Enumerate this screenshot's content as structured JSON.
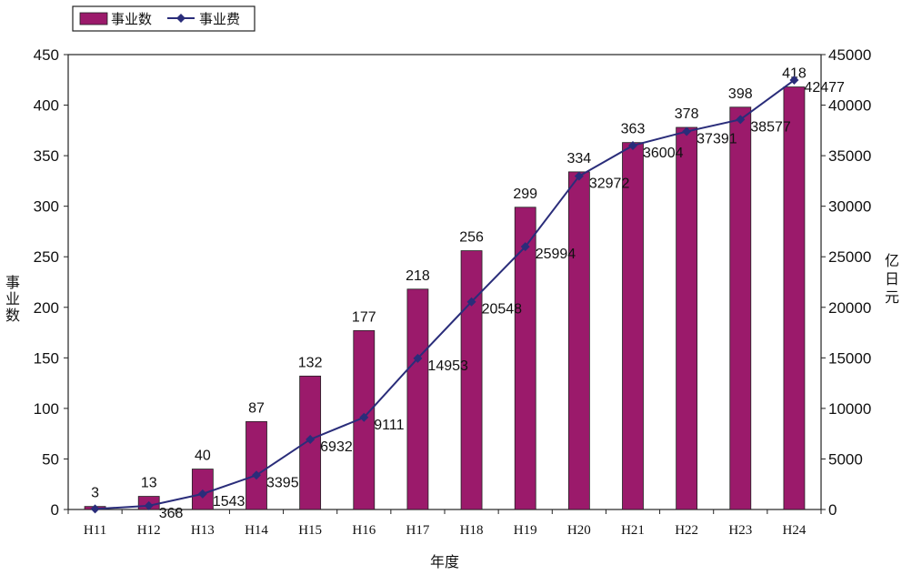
{
  "chart_data": {
    "type": "bar",
    "categories": [
      "H11",
      "H12",
      "H13",
      "H14",
      "H15",
      "H16",
      "H17",
      "H18",
      "H19",
      "H20",
      "H21",
      "H22",
      "H23",
      "H24"
    ],
    "series": [
      {
        "name": "事业数",
        "type": "bar",
        "axis": "left",
        "values": [
          3,
          13,
          40,
          87,
          132,
          177,
          218,
          256,
          299,
          334,
          363,
          378,
          398,
          418
        ],
        "color": "#9b1a6b"
      },
      {
        "name": "事业费",
        "type": "line",
        "axis": "right",
        "values": [
          53,
          368,
          1543,
          3395,
          6932,
          9111,
          14953,
          20548,
          25994,
          32972,
          36004,
          37391,
          38577,
          42477
        ],
        "labels": [
          "",
          "368",
          "1543",
          "3395",
          "6932",
          "9111",
          "14953",
          "20548",
          "25994",
          "32972",
          "36004",
          "37391",
          "38577",
          "42477"
        ],
        "color": "#2a2d7a"
      }
    ],
    "xlabel": "年度",
    "ylabel": "事业数",
    "y2label": "亿日元",
    "ylim": [
      0,
      450
    ],
    "y2lim": [
      0,
      45000
    ],
    "yticks": [
      0,
      50,
      100,
      150,
      200,
      250,
      300,
      350,
      400,
      450
    ],
    "y2ticks": [
      0,
      5000,
      10000,
      15000,
      20000,
      25000,
      30000,
      35000,
      40000,
      45000
    ],
    "grid": false,
    "legend_position": "top-left"
  }
}
